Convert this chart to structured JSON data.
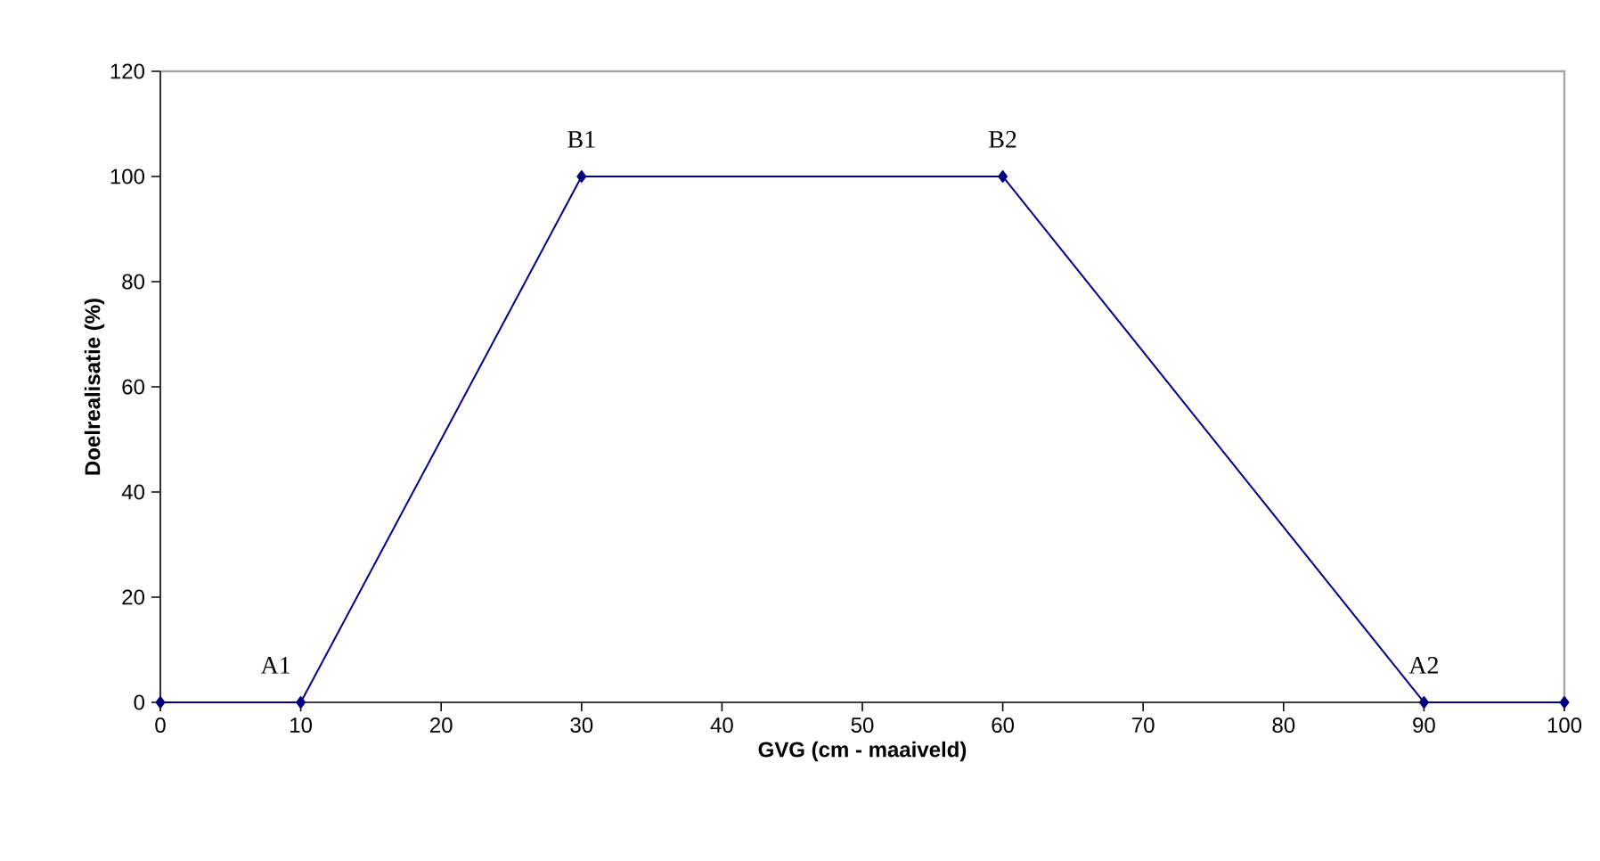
{
  "chart_data": {
    "type": "line",
    "xlabel": "GVG (cm - maaiveld)",
    "ylabel": "Doelrealisatie (%)",
    "x": [
      0,
      10,
      30,
      60,
      90,
      100
    ],
    "series": [
      {
        "color": "#000080",
        "values": [
          0,
          0,
          100,
          100,
          0,
          0
        ]
      }
    ],
    "xlim": [
      0,
      100
    ],
    "xticks": [
      0,
      10,
      20,
      30,
      40,
      50,
      60,
      70,
      80,
      90,
      100
    ],
    "ylim": [
      0,
      120
    ],
    "yticks": [
      0,
      20,
      40,
      60,
      80,
      100,
      120
    ],
    "marker": "diamond",
    "line_style": "solid",
    "grid": false,
    "annotations": [
      {
        "text": "A1",
        "x": 10,
        "y": 0
      },
      {
        "text": "B1",
        "x": 30,
        "y": 100
      },
      {
        "text": "B2",
        "x": 60,
        "y": 100
      },
      {
        "text": "A2",
        "x": 90,
        "y": 0
      }
    ]
  }
}
